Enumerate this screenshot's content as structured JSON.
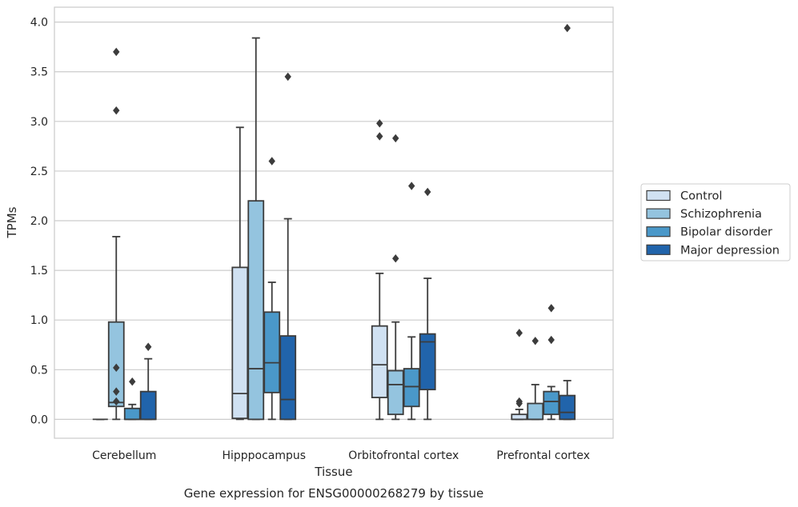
{
  "chart_data": {
    "type": "box",
    "title": "",
    "caption": "Gene expression for ENSG00000268279 by tissue",
    "xlabel": "Tissue",
    "ylabel": "TPMs",
    "ylim": [
      -0.19,
      4.15
    ],
    "yticks": [
      "0.0",
      "0.5",
      "1.0",
      "1.5",
      "2.0",
      "2.5",
      "3.0",
      "3.5",
      "4.0"
    ],
    "grid": "horizontal",
    "legend_position": "right",
    "categories": [
      "Cerebellum",
      "Hipppocampus",
      "Orbitofrontal cortex",
      "Prefrontal cortex"
    ],
    "series": [
      {
        "name": "Control",
        "color": "#d0e1f2",
        "boxes": [
          {
            "q1": 0.0,
            "median": 0.0,
            "q3": 0.0,
            "whisker_low": 0.0,
            "whisker_high": 0.0,
            "outliers": []
          },
          {
            "q1": 0.01,
            "median": 0.26,
            "q3": 1.53,
            "whisker_low": 0.0,
            "whisker_high": 2.94,
            "outliers": []
          },
          {
            "q1": 0.22,
            "median": 0.55,
            "q3": 0.94,
            "whisker_low": 0.0,
            "whisker_high": 1.47,
            "outliers": [
              2.98,
              2.85
            ]
          },
          {
            "q1": 0.0,
            "median": 0.0,
            "q3": 0.05,
            "whisker_low": 0.0,
            "whisker_high": 0.1,
            "outliers": [
              0.87,
              0.18,
              0.16
            ]
          }
        ]
      },
      {
        "name": "Schizophrenia",
        "color": "#94c4df",
        "boxes": [
          {
            "q1": 0.13,
            "median": 0.17,
            "q3": 0.98,
            "whisker_low": 0.0,
            "whisker_high": 1.84,
            "outliers": [
              0.52,
              0.28,
              0.18,
              3.7,
              3.11
            ]
          },
          {
            "q1": 0.0,
            "median": 0.51,
            "q3": 2.2,
            "whisker_low": 0.0,
            "whisker_high": 3.84,
            "outliers": []
          },
          {
            "q1": 0.05,
            "median": 0.35,
            "q3": 0.49,
            "whisker_low": 0.0,
            "whisker_high": 0.98,
            "outliers": [
              2.83,
              1.62
            ]
          },
          {
            "q1": 0.0,
            "median": 0.0,
            "q3": 0.16,
            "whisker_low": 0.0,
            "whisker_high": 0.35,
            "outliers": [
              0.79
            ]
          }
        ]
      },
      {
        "name": "Bipolar disorder",
        "color": "#4a98c9",
        "boxes": [
          {
            "q1": 0.0,
            "median": 0.0,
            "q3": 0.11,
            "whisker_low": 0.0,
            "whisker_high": 0.15,
            "outliers": [
              0.38
            ]
          },
          {
            "q1": 0.27,
            "median": 0.57,
            "q3": 1.08,
            "whisker_low": 0.0,
            "whisker_high": 1.38,
            "outliers": [
              2.6
            ]
          },
          {
            "q1": 0.13,
            "median": 0.33,
            "q3": 0.51,
            "whisker_low": 0.0,
            "whisker_high": 0.83,
            "outliers": [
              2.35
            ]
          },
          {
            "q1": 0.05,
            "median": 0.18,
            "q3": 0.28,
            "whisker_low": 0.0,
            "whisker_high": 0.33,
            "outliers": [
              0.8,
              1.12
            ]
          }
        ]
      },
      {
        "name": "Major depression",
        "color": "#2164ab",
        "boxes": [
          {
            "q1": 0.0,
            "median": 0.0,
            "q3": 0.28,
            "whisker_low": 0.0,
            "whisker_high": 0.61,
            "outliers": [
              0.73
            ]
          },
          {
            "q1": 0.0,
            "median": 0.2,
            "q3": 0.84,
            "whisker_low": 0.0,
            "whisker_high": 2.02,
            "outliers": [
              3.45
            ]
          },
          {
            "q1": 0.3,
            "median": 0.78,
            "q3": 0.86,
            "whisker_low": 0.0,
            "whisker_high": 1.42,
            "outliers": [
              2.29
            ]
          },
          {
            "q1": 0.0,
            "median": 0.07,
            "q3": 0.24,
            "whisker_low": 0.0,
            "whisker_high": 0.39,
            "outliers": [
              3.94
            ]
          }
        ]
      }
    ]
  }
}
